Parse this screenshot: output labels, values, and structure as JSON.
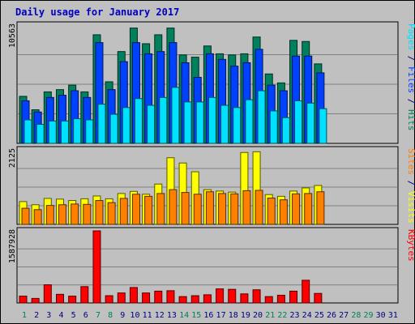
{
  "colors": {
    "background": "#c0c0c0",
    "hits": "#00805c",
    "files": "#0040ff",
    "pages": "#00e0ff",
    "visits": "#ffff00",
    "sites": "#ff8000",
    "kbytes": "#ff0000",
    "title": "#0000c0",
    "weekend_day": "#00805c",
    "weekday": "#000080"
  },
  "chart_data": {
    "type": "bar",
    "title": "Daily usage for January 2017",
    "categories": [
      "1",
      "2",
      "3",
      "4",
      "5",
      "6",
      "7",
      "8",
      "9",
      "10",
      "11",
      "12",
      "13",
      "14",
      "15",
      "16",
      "17",
      "18",
      "19",
      "20",
      "21",
      "22",
      "23",
      "24",
      "25",
      "26",
      "27",
      "28",
      "29",
      "30",
      "31"
    ],
    "weekend_days": [
      "1",
      "7",
      "8",
      "14",
      "15",
      "21",
      "22",
      "28",
      "29"
    ],
    "panels": [
      {
        "max_label": "10563",
        "ymax": 10563,
        "label_parts": [
          {
            "text": "Pages",
            "color_key": "pages"
          },
          {
            "text": " / ",
            "color_key": "weekday"
          },
          {
            "text": "Files",
            "color_key": "files"
          },
          {
            "text": " / ",
            "color_key": "weekday"
          },
          {
            "text": "Hits",
            "color_key": "hits"
          }
        ],
        "series": [
          {
            "name": "Hits",
            "color_key": "hits",
            "values": [
              4200,
              3000,
              4600,
              4800,
              5200,
              4600,
              9700,
              5500,
              8200,
              10300,
              8900,
              9700,
              10300,
              7900,
              7700,
              8700,
              8000,
              7900,
              8000,
              9500,
              6200,
              5400,
              9200,
              9100,
              7100,
              0,
              0,
              0,
              0,
              0,
              0
            ]
          },
          {
            "name": "Files",
            "color_key": "files",
            "values": [
              3800,
              2800,
              4100,
              4300,
              4700,
              4100,
              9000,
              4800,
              7300,
              9000,
              8000,
              8200,
              9000,
              7200,
              5900,
              8000,
              7500,
              6900,
              7200,
              8400,
              5200,
              4700,
              7800,
              7800,
              6300,
              0,
              0,
              0,
              0,
              0,
              0
            ]
          },
          {
            "name": "Pages",
            "color_key": "pages",
            "values": [
              2100,
              1700,
              2000,
              2000,
              2200,
              2100,
              3500,
              2600,
              3200,
              4000,
              3400,
              4100,
              5000,
              3700,
              3700,
              4100,
              3400,
              3200,
              3900,
              4700,
              2900,
              2300,
              3800,
              3600,
              3100,
              0,
              0,
              0,
              0,
              0,
              0
            ]
          }
        ]
      },
      {
        "max_label": "2125",
        "ymax": 2125,
        "label_parts": [
          {
            "text": "Sites",
            "color_key": "sites"
          },
          {
            "text": " / ",
            "color_key": "weekday"
          },
          {
            "text": "Visits",
            "color_key": "visits"
          }
        ],
        "series": [
          {
            "name": "Visits",
            "color_key": "visits",
            "values": [
              650,
              560,
              740,
              720,
              680,
              730,
              810,
              730,
              880,
              940,
              860,
              1150,
              1900,
              1750,
              1500,
              990,
              950,
              920,
              2050,
              2070,
              850,
              800,
              950,
              1040,
              1110,
              0,
              0,
              0,
              0,
              0,
              0
            ]
          },
          {
            "name": "Sites",
            "color_key": "sites",
            "values": [
              460,
              420,
              540,
              560,
              580,
              570,
              680,
              620,
              740,
              860,
              800,
              880,
              990,
              910,
              860,
              930,
              880,
              870,
              960,
              970,
              750,
              700,
              870,
              880,
              930,
              0,
              0,
              0,
              0,
              0,
              0
            ]
          }
        ]
      },
      {
        "max_label": "1587928",
        "ymax": 1587928,
        "label_parts": [
          {
            "text": "KBytes",
            "color_key": "kbytes"
          }
        ],
        "series": [
          {
            "name": "KBytes",
            "color_key": "kbytes",
            "values": [
              150000,
              100000,
              400000,
              190000,
              150000,
              360000,
              1587928,
              160000,
              220000,
              340000,
              220000,
              260000,
              270000,
              140000,
              160000,
              180000,
              310000,
              300000,
              200000,
              290000,
              140000,
              170000,
              260000,
              500000,
              210000,
              0,
              0,
              0,
              0,
              0,
              0
            ]
          }
        ]
      }
    ]
  }
}
